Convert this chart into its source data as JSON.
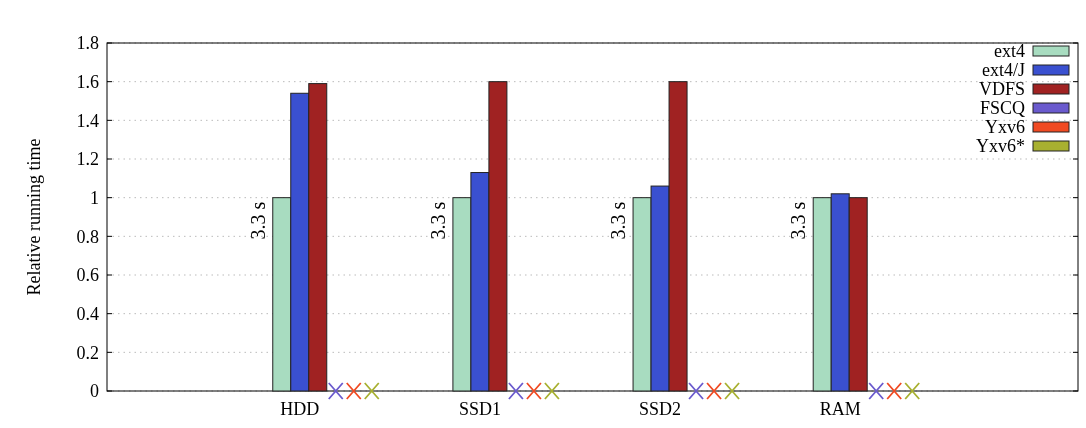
{
  "chart_data": {
    "type": "bar",
    "ylabel": "Relative running time",
    "categories": [
      "HDD",
      "SSD1",
      "SSD2",
      "RAM"
    ],
    "series": [
      {
        "name": "ext4",
        "color": "#a8dcc0",
        "values": [
          1,
          1,
          1,
          1
        ]
      },
      {
        "name": "ext4/J",
        "color": "#3a50d0",
        "values": [
          1.54,
          1.13,
          1.06,
          1.02
        ]
      },
      {
        "name": "VDFS",
        "color": "#a02222",
        "values": [
          1.59,
          1.6,
          1.6,
          1.0
        ]
      },
      {
        "name": "FSCQ",
        "color": "#6a5acd",
        "values": [
          null,
          null,
          null,
          null
        ]
      },
      {
        "name": "Yxv6",
        "color": "#f04a22",
        "values": [
          null,
          null,
          null,
          null
        ]
      },
      {
        "name": "Yxv6*",
        "color": "#a8b030",
        "values": [
          null,
          null,
          null,
          null
        ]
      }
    ],
    "annotations": [
      "3.3 s",
      "3.3 s",
      "3.3 s",
      "3.3 s"
    ],
    "ylim": [
      0,
      1.8
    ],
    "yticks": [
      0,
      0.2,
      0.4,
      0.6,
      0.8,
      1,
      1.2,
      1.4,
      1.6,
      1.8
    ],
    "grid": "y",
    "legend": "top right"
  }
}
